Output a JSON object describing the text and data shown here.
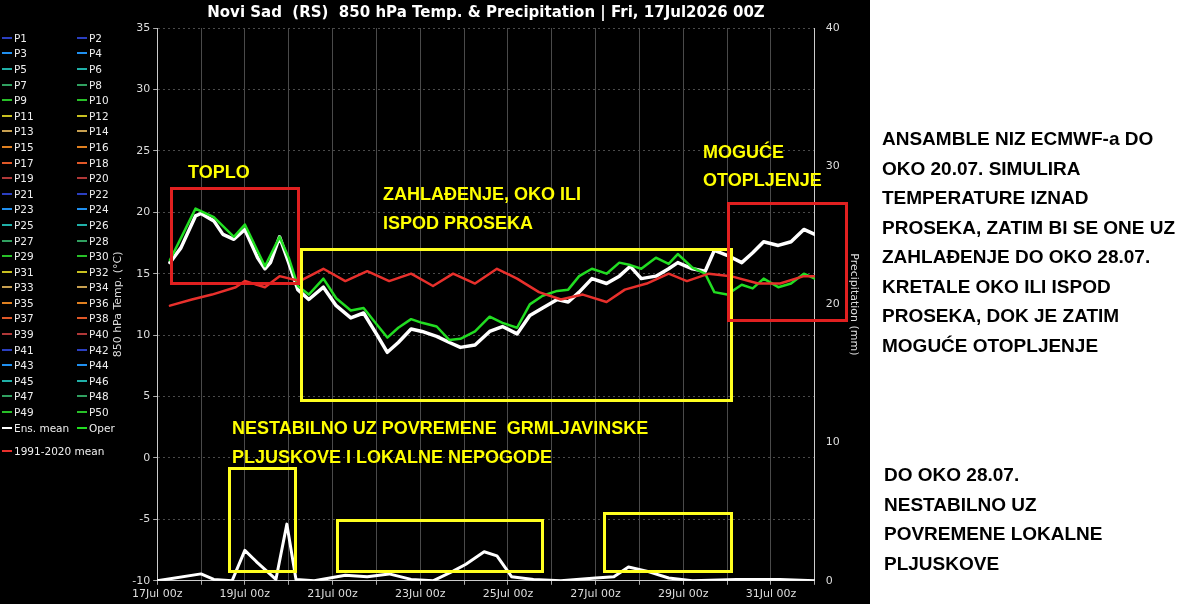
{
  "chart_data": {
    "type": "line",
    "title": "Novi Sad  (RS)  850 hPa Temp. & Precipitation | Fri, 17Jul2026 00Z",
    "ylabel": "850 hPa Temp. (°C)",
    "y2label": "Precipitation (mm)",
    "xlim": [
      "2026-07-17T00:00",
      "2026-08-01T00:00"
    ],
    "xticks": [
      {
        "value": "2026-07-17T00:00",
        "label": "17Jul 00z"
      },
      {
        "value": "2026-07-18T00:00",
        "label": null
      },
      {
        "value": "2026-07-19T00:00",
        "label": "19Jul 00z"
      },
      {
        "value": "2026-07-20T00:00",
        "label": null
      },
      {
        "value": "2026-07-21T00:00",
        "label": "21Jul 00z"
      },
      {
        "value": "2026-07-22T00:00",
        "label": null
      },
      {
        "value": "2026-07-23T00:00",
        "label": "23Jul 00z"
      },
      {
        "value": "2026-07-24T00:00",
        "label": null
      },
      {
        "value": "2026-07-25T00:00",
        "label": "25Jul 00z"
      },
      {
        "value": "2026-07-26T00:00",
        "label": null
      },
      {
        "value": "2026-07-27T00:00",
        "label": "27Jul 00z"
      },
      {
        "value": "2026-07-28T00:00",
        "label": null
      },
      {
        "value": "2026-07-29T00:00",
        "label": "29Jul 00z"
      },
      {
        "value": "2026-07-30T00:00",
        "label": null
      },
      {
        "value": "2026-07-31T00:00",
        "label": "31Jul 00z"
      },
      {
        "value": "2026-08-01T00:00",
        "label": null
      }
    ],
    "ylim": [
      -10,
      35
    ],
    "yticks": [
      -10,
      -5,
      0,
      5,
      10,
      15,
      20,
      25,
      30,
      35
    ],
    "y2lim": [
      0,
      40
    ],
    "y2ticks": [
      0,
      10,
      20,
      30,
      40
    ],
    "grid": true,
    "legend": "left",
    "marker": "none",
    "line_style": "solid",
    "series": [
      {
        "name": "P1",
        "color": "#2b3fc0"
      },
      {
        "name": "P2",
        "color": "#2b3fc0"
      },
      {
        "name": "P3",
        "color": "#2090f0"
      },
      {
        "name": "P4",
        "color": "#2090f0"
      },
      {
        "name": "P5",
        "color": "#20b0a8"
      },
      {
        "name": "P6",
        "color": "#20b0a8"
      },
      {
        "name": "P7",
        "color": "#30a060"
      },
      {
        "name": "P8",
        "color": "#30a060"
      },
      {
        "name": "P9",
        "color": "#28c028"
      },
      {
        "name": "P10",
        "color": "#28c028"
      },
      {
        "name": "P11",
        "color": "#c8c020"
      },
      {
        "name": "P12",
        "color": "#c8c020"
      },
      {
        "name": "P13",
        "color": "#c8a050"
      },
      {
        "name": "P14",
        "color": "#c8a050"
      },
      {
        "name": "P15",
        "color": "#e08020"
      },
      {
        "name": "P16",
        "color": "#e08020"
      },
      {
        "name": "P17",
        "color": "#e05828"
      },
      {
        "name": "P18",
        "color": "#e05828"
      },
      {
        "name": "P19",
        "color": "#b03838"
      },
      {
        "name": "P20",
        "color": "#b03838"
      },
      {
        "name": "P21",
        "color": "#2b3fc0"
      },
      {
        "name": "P22",
        "color": "#2b3fc0"
      },
      {
        "name": "P23",
        "color": "#2090f0"
      },
      {
        "name": "P24",
        "color": "#2090f0"
      },
      {
        "name": "P25",
        "color": "#20b0a8"
      },
      {
        "name": "P26",
        "color": "#20b0a8"
      },
      {
        "name": "P27",
        "color": "#30a060"
      },
      {
        "name": "P28",
        "color": "#30a060"
      },
      {
        "name": "P29",
        "color": "#28c028"
      },
      {
        "name": "P30",
        "color": "#28c028"
      },
      {
        "name": "P31",
        "color": "#c8c020"
      },
      {
        "name": "P32",
        "color": "#c8c020"
      },
      {
        "name": "P33",
        "color": "#c8a050"
      },
      {
        "name": "P34",
        "color": "#c8a050"
      },
      {
        "name": "P35",
        "color": "#e08020"
      },
      {
        "name": "P36",
        "color": "#e08020"
      },
      {
        "name": "P37",
        "color": "#e05828"
      },
      {
        "name": "P38",
        "color": "#e05828"
      },
      {
        "name": "P39",
        "color": "#b03838"
      },
      {
        "name": "P40",
        "color": "#b03838"
      },
      {
        "name": "P41",
        "color": "#2b3fc0"
      },
      {
        "name": "P42",
        "color": "#2b3fc0"
      },
      {
        "name": "P43",
        "color": "#2090f0"
      },
      {
        "name": "P44",
        "color": "#2090f0"
      },
      {
        "name": "P45",
        "color": "#20b0a8"
      },
      {
        "name": "P46",
        "color": "#20b0a8"
      },
      {
        "name": "P47",
        "color": "#30a060"
      },
      {
        "name": "P48",
        "color": "#30a060"
      },
      {
        "name": "P49",
        "color": "#28c028"
      },
      {
        "name": "P50",
        "color": "#28c028"
      },
      {
        "name": "Ens. mean",
        "color": "#ffffff",
        "x": [
          "2026-07-17T07:00",
          "2026-07-17T13:00",
          "2026-07-17T21:00",
          "2026-07-18T00:00",
          "2026-07-18T07:00",
          "2026-07-18T12:00",
          "2026-07-18T18:00",
          "2026-07-19T00:00",
          "2026-07-19T07:00",
          "2026-07-19T11:00",
          "2026-07-19T14:00",
          "2026-07-19T19:00",
          "2026-07-20T00:00",
          "2026-07-20T05:00",
          "2026-07-20T11:00",
          "2026-07-20T19:00",
          "2026-07-21T02:00",
          "2026-07-21T10:00",
          "2026-07-21T17:00",
          "2026-07-22T00:00",
          "2026-07-22T06:00",
          "2026-07-22T12:00",
          "2026-07-22T19:00",
          "2026-07-23T01:00",
          "2026-07-23T09:00",
          "2026-07-23T16:00",
          "2026-07-23T22:00",
          "2026-07-24T06:00",
          "2026-07-24T14:00",
          "2026-07-24T21:00",
          "2026-07-25T05:00",
          "2026-07-25T12:00",
          "2026-07-25T19:00",
          "2026-07-26T03:00",
          "2026-07-26T09:00",
          "2026-07-26T15:00",
          "2026-07-26T22:00",
          "2026-07-27T06:00",
          "2026-07-27T13:00",
          "2026-07-27T19:00",
          "2026-07-28T01:00",
          "2026-07-28T09:00",
          "2026-07-28T16:00",
          "2026-07-28T21:00",
          "2026-07-29T05:00",
          "2026-07-29T12:00",
          "2026-07-29T17:00",
          "2026-07-30T00:00",
          "2026-07-30T08:00",
          "2026-07-30T14:00",
          "2026-07-30T20:00",
          "2026-07-31T04:00",
          "2026-07-31T11:00",
          "2026-07-31T18:00",
          "2026-08-01T00:00"
        ],
        "values": [
          15.9,
          17.1,
          19.7,
          19.9,
          19.3,
          18.2,
          17.8,
          18.6,
          16.3,
          15.4,
          15.9,
          18.0,
          15.9,
          13.7,
          12.9,
          13.9,
          12.4,
          11.4,
          11.8,
          10.1,
          8.6,
          9.4,
          10.5,
          10.3,
          9.9,
          9.4,
          9.0,
          9.2,
          10.3,
          10.7,
          10.1,
          11.6,
          12.2,
          12.9,
          12.7,
          13.5,
          14.6,
          14.2,
          14.8,
          15.6,
          14.6,
          14.8,
          15.4,
          15.9,
          15.4,
          15.2,
          16.9,
          16.5,
          15.9,
          16.7,
          17.6,
          17.3,
          17.6,
          18.6,
          18.2
        ]
      },
      {
        "name": "Oper",
        "color": "#22dd22",
        "x": [
          "2026-07-17T07:00",
          "2026-07-17T21:00",
          "2026-07-18T07:00",
          "2026-07-18T18:00",
          "2026-07-19T00:00",
          "2026-07-19T11:00",
          "2026-07-19T19:00",
          "2026-07-20T00:00",
          "2026-07-20T05:00",
          "2026-07-20T11:00",
          "2026-07-20T19:00",
          "2026-07-21T02:00",
          "2026-07-21T10:00",
          "2026-07-21T17:00",
          "2026-07-22T00:00",
          "2026-07-22T06:00",
          "2026-07-22T12:00",
          "2026-07-22T19:00",
          "2026-07-23T01:00",
          "2026-07-23T09:00",
          "2026-07-23T16:00",
          "2026-07-23T22:00",
          "2026-07-24T06:00",
          "2026-07-24T14:00",
          "2026-07-24T21:00",
          "2026-07-25T05:00",
          "2026-07-25T12:00",
          "2026-07-25T19:00",
          "2026-07-26T03:00",
          "2026-07-26T09:00",
          "2026-07-26T15:00",
          "2026-07-26T22:00",
          "2026-07-27T06:00",
          "2026-07-27T13:00",
          "2026-07-27T19:00",
          "2026-07-28T01:00",
          "2026-07-28T09:00",
          "2026-07-28T16:00",
          "2026-07-28T21:00",
          "2026-07-29T05:00",
          "2026-07-29T12:00",
          "2026-07-29T17:00",
          "2026-07-30T00:00",
          "2026-07-30T08:00",
          "2026-07-30T14:00",
          "2026-07-30T20:00",
          "2026-07-31T04:00",
          "2026-07-31T11:00",
          "2026-07-31T18:00",
          "2026-08-01T00:00"
        ],
        "values": [
          16.1,
          20.3,
          19.6,
          18.0,
          19.0,
          15.6,
          18.0,
          16.3,
          14.0,
          13.3,
          14.6,
          13.0,
          12.0,
          12.2,
          10.9,
          9.8,
          10.6,
          11.3,
          11.0,
          10.7,
          9.6,
          9.7,
          10.3,
          11.5,
          11.0,
          10.6,
          12.5,
          13.2,
          13.6,
          13.7,
          14.8,
          15.4,
          15.0,
          15.9,
          15.7,
          15.4,
          16.3,
          15.8,
          16.6,
          15.5,
          15.0,
          13.5,
          13.3,
          14.1,
          13.8,
          14.6,
          13.9,
          14.2,
          15.0,
          14.6
        ]
      },
      {
        "name": "1991-2020 mean",
        "color": "#e8302c",
        "x": [
          "2026-07-17T07:00",
          "2026-07-17T19:00",
          "2026-07-18T06:00",
          "2026-07-18T19:00",
          "2026-07-19T00:00",
          "2026-07-19T11:00",
          "2026-07-19T19:00",
          "2026-07-20T06:00",
          "2026-07-20T19:00",
          "2026-07-21T07:00",
          "2026-07-21T19:00",
          "2026-07-22T07:00",
          "2026-07-22T19:00",
          "2026-07-23T07:00",
          "2026-07-23T18:00",
          "2026-07-24T06:00",
          "2026-07-24T18:00",
          "2026-07-25T05:00",
          "2026-07-25T17:00",
          "2026-07-26T05:00",
          "2026-07-26T17:00",
          "2026-07-27T06:00",
          "2026-07-27T16:00",
          "2026-07-28T04:00",
          "2026-07-28T16:00",
          "2026-07-29T02:00",
          "2026-07-29T14:00",
          "2026-07-30T02:00",
          "2026-07-30T17:00",
          "2026-07-31T05:00",
          "2026-07-31T18:00",
          "2026-08-01T00:00"
        ],
        "values": [
          12.4,
          12.9,
          13.3,
          13.9,
          14.4,
          13.9,
          14.8,
          14.4,
          15.4,
          14.4,
          15.2,
          14.4,
          15.0,
          14.0,
          15.0,
          14.2,
          15.4,
          14.6,
          13.5,
          12.9,
          13.3,
          12.7,
          13.7,
          14.2,
          15.0,
          14.4,
          15.0,
          14.8,
          14.2,
          14.2,
          14.8,
          14.8
        ]
      },
      {
        "color": "#ffffff",
        "axis": "y2",
        "x": [
          "2026-07-17T00:00",
          "2026-07-18T00:00",
          "2026-07-18T07:00",
          "2026-07-18T17:00",
          "2026-07-19T00:00",
          "2026-07-19T07:00",
          "2026-07-19T17:00",
          "2026-07-19T23:00",
          "2026-07-20T04:00",
          "2026-07-20T14:00",
          "2026-07-21T07:00",
          "2026-07-21T19:00",
          "2026-07-22T07:00",
          "2026-07-22T19:00",
          "2026-07-23T07:00",
          "2026-07-23T18:00",
          "2026-07-24T01:00",
          "2026-07-24T11:00",
          "2026-07-24T18:00",
          "2026-07-25T02:00",
          "2026-07-25T14:00",
          "2026-07-26T05:00",
          "2026-07-27T00:00",
          "2026-07-27T10:00",
          "2026-07-27T18:00",
          "2026-07-28T04:00",
          "2026-07-28T16:00",
          "2026-07-29T05:00",
          "2026-07-30T05:00",
          "2026-07-31T05:00",
          "2026-08-01T00:00"
        ],
        "values": [
          0,
          0.5,
          0.1,
          0,
          2.2,
          1.3,
          0.1,
          4.1,
          0.1,
          0,
          0.4,
          0.3,
          0.5,
          0.1,
          0,
          0.7,
          1.2,
          2.1,
          1.8,
          0.3,
          0.1,
          0,
          0.2,
          0.3,
          1.0,
          0.7,
          0.2,
          0,
          0.1,
          0.1,
          0
        ]
      }
    ],
    "annotations": [
      "TOPLO",
      "ZAHLAĐENJE, OKO ILI ISPOD PROSEKA",
      "MOGUĆE OTOPLJENJE",
      "NESTABILNO UZ POVREMENE  GRMLJAVINSKE PLJUSKOVE I LOKALNE NEPOGODE",
      "ANSAMBLE NIZ ECMWF-a DO OKO 20.07. SIMULIRA TEMPERATURE IZNAD PROSEKA, ZATIM BI SE ONE UZ ZAHLAĐENJE DO OKO 28.07. KRETALE OKO ILI ISPOD PROSEKA, DOK JE ZATIM MOGUĆE OTOPLJENJE",
      "DO OKO 28.07. NESTABILNO UZ POVREMENE LOKALNE PLJUSKOVE"
    ]
  }
}
